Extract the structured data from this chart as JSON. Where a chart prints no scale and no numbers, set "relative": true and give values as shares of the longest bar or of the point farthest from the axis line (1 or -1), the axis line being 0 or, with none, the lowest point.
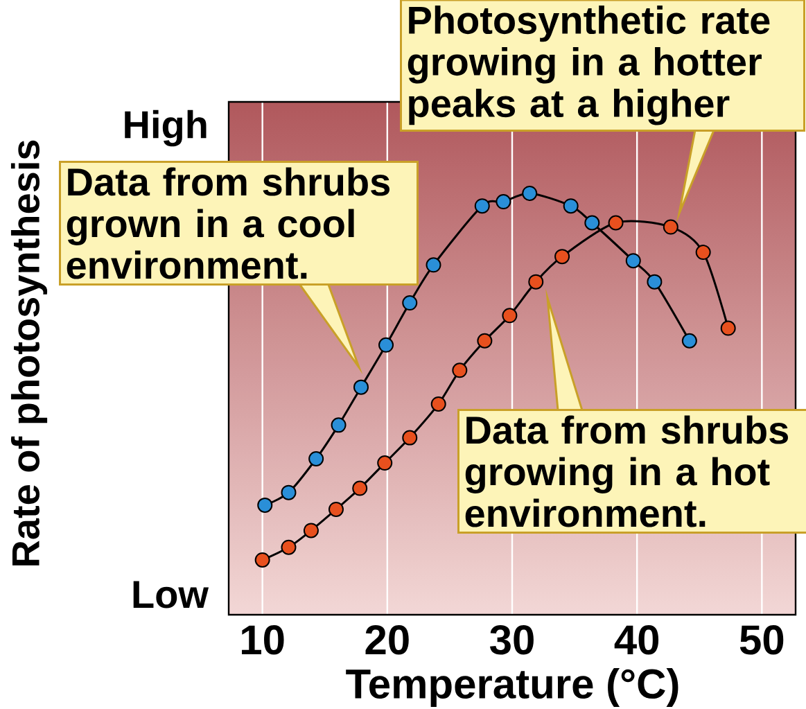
{
  "chart_data": {
    "type": "line",
    "relative": true,
    "xlabel": "Temperature (°C)",
    "ylabel": "Rate of photosynthesis",
    "xlim": [
      7.3,
      52.7
    ],
    "xticks": [
      10,
      20,
      30,
      40,
      50
    ],
    "grid": "x",
    "marker": "circle",
    "line_style": "solid",
    "series": [
      {
        "color": "#2a8fd8",
        "x": [
          10.2,
          12.1,
          14.3,
          16.1,
          17.9,
          19.9,
          21.8,
          23.7,
          27.6,
          29.3,
          31.4,
          34.7,
          36.4,
          39.7,
          41.4,
          44.2
        ],
        "values": [
          0.26,
          0.29,
          0.37,
          0.45,
          0.54,
          0.64,
          0.74,
          0.83,
          0.97,
          0.98,
          1.0,
          0.97,
          0.93,
          0.84,
          0.79,
          0.65
        ]
      },
      {
        "color": "#e8501e",
        "x": [
          10.0,
          12.1,
          13.9,
          15.9,
          17.8,
          19.8,
          21.8,
          24.1,
          25.8,
          27.8,
          29.8,
          31.9,
          34.0,
          38.3,
          42.7,
          45.3,
          47.3
        ],
        "values": [
          0.13,
          0.16,
          0.2,
          0.25,
          0.3,
          0.36,
          0.42,
          0.5,
          0.58,
          0.65,
          0.71,
          0.79,
          0.85,
          0.93,
          0.92,
          0.86,
          0.68
        ]
      }
    ],
    "annotations": [
      "High",
      "Low",
      "Data from shrubs grown in a cool environment.",
      "Photosynthetic rate growing in a hotter peaks at a higher",
      "Data from shrubs growing in a hot environment."
    ]
  }
}
